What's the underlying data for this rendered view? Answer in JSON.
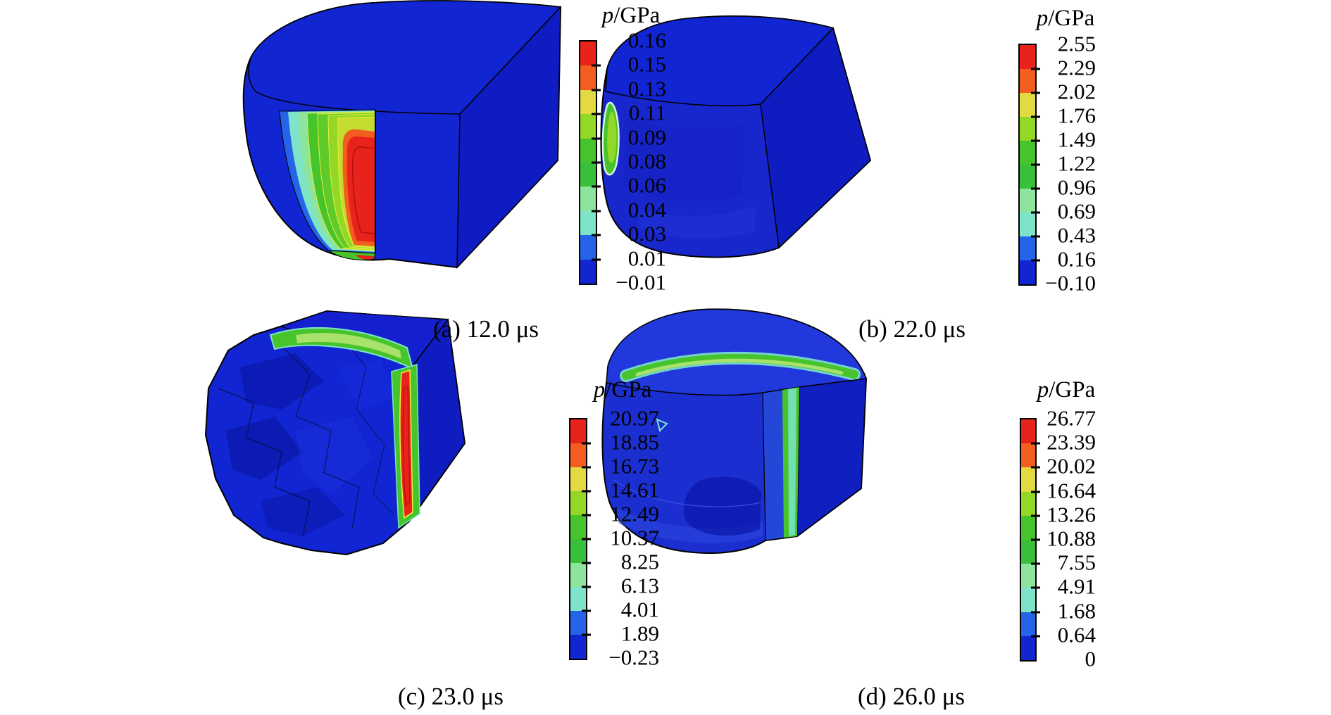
{
  "figure": {
    "colorbar_colors_top_to_bottom": [
      "#e8231c",
      "#f35d20",
      "#e3d943",
      "#93d727",
      "#47c32b",
      "#38c03a",
      "#8ce49d",
      "#7de4c9",
      "#2563e8",
      "#1126d0"
    ],
    "panels": [
      {
        "id": "a",
        "caption": "(a) 12.0 μs",
        "legend_title_var": "p",
        "legend_title_unit": "/GPa",
        "tick_labels": [
          "0.16",
          "0.15",
          "0.13",
          "0.11",
          "0.09",
          "0.08",
          "0.06",
          "0.04",
          "0.03",
          "0.01",
          "−0.01"
        ]
      },
      {
        "id": "b",
        "caption": "(b) 22.0 μs",
        "legend_title_var": "p",
        "legend_title_unit": "/GPa",
        "tick_labels": [
          "2.55",
          "2.29",
          "2.02",
          "1.76",
          "1.49",
          "1.22",
          "0.96",
          "0.69",
          "0.43",
          "0.16",
          "−0.10"
        ]
      },
      {
        "id": "c",
        "caption": "(c) 23.0 μs",
        "legend_title_var": "p",
        "legend_title_unit": "/GPa",
        "tick_labels": [
          "20.97",
          "18.85",
          "16.73",
          "14.61",
          "12.49",
          "10.37",
          "8.25",
          "6.13",
          "4.01",
          "1.89",
          "−0.23"
        ]
      },
      {
        "id": "d",
        "caption": "(d) 26.0 μs",
        "legend_title_var": "p",
        "legend_title_unit": "/GPa",
        "tick_labels": [
          "26.77",
          "23.39",
          "20.02",
          "16.64",
          "13.26",
          "10.88",
          "7.55",
          "4.91",
          "1.68",
          "0.64",
          "0"
        ]
      }
    ]
  },
  "chart_data": [
    {
      "type": "heatmap",
      "title": "(a) 12.0 μs",
      "legend_title": "p/GPa",
      "legend_position": "right",
      "colorbar_tick_values": [
        0.16,
        0.15,
        0.13,
        0.11,
        0.09,
        0.08,
        0.06,
        0.04,
        0.03,
        0.01,
        -0.01
      ],
      "value_min": -0.01,
      "value_max": 0.16,
      "colorbar_colors_top_to_bottom": [
        "#e8231c",
        "#f35d20",
        "#e3d943",
        "#93d727",
        "#47c32b",
        "#38c03a",
        "#8ce49d",
        "#7de4c9",
        "#2563e8",
        "#1126d0"
      ]
    },
    {
      "type": "heatmap",
      "title": "(b) 22.0 μs",
      "legend_title": "p/GPa",
      "legend_position": "right",
      "colorbar_tick_values": [
        2.55,
        2.29,
        2.02,
        1.76,
        1.49,
        1.22,
        0.96,
        0.69,
        0.43,
        0.16,
        -0.1
      ],
      "value_min": -0.1,
      "value_max": 2.55,
      "colorbar_colors_top_to_bottom": [
        "#e8231c",
        "#f35d20",
        "#e3d943",
        "#93d727",
        "#47c32b",
        "#38c03a",
        "#8ce49d",
        "#7de4c9",
        "#2563e8",
        "#1126d0"
      ]
    },
    {
      "type": "heatmap",
      "title": "(c) 23.0 μs",
      "legend_title": "p/GPa",
      "legend_position": "right",
      "colorbar_tick_values": [
        20.97,
        18.85,
        16.73,
        14.61,
        12.49,
        10.37,
        8.25,
        6.13,
        4.01,
        1.89,
        -0.23
      ],
      "value_min": -0.23,
      "value_max": 20.97,
      "colorbar_colors_top_to_bottom": [
        "#e8231c",
        "#f35d20",
        "#e3d943",
        "#93d727",
        "#47c32b",
        "#38c03a",
        "#8ce49d",
        "#7de4c9",
        "#2563e8",
        "#1126d0"
      ]
    },
    {
      "type": "heatmap",
      "title": "(d) 26.0 μs",
      "legend_title": "p/GPa",
      "legend_position": "right",
      "colorbar_tick_values": [
        26.77,
        23.39,
        20.02,
        16.64,
        13.26,
        10.88,
        7.55,
        4.91,
        1.68,
        0.64,
        0
      ],
      "value_min": 0,
      "value_max": 26.77,
      "colorbar_colors_top_to_bottom": [
        "#e8231c",
        "#f35d20",
        "#e3d943",
        "#93d727",
        "#47c32b",
        "#38c03a",
        "#8ce49d",
        "#7de4c9",
        "#2563e8",
        "#1126d0"
      ]
    }
  ]
}
